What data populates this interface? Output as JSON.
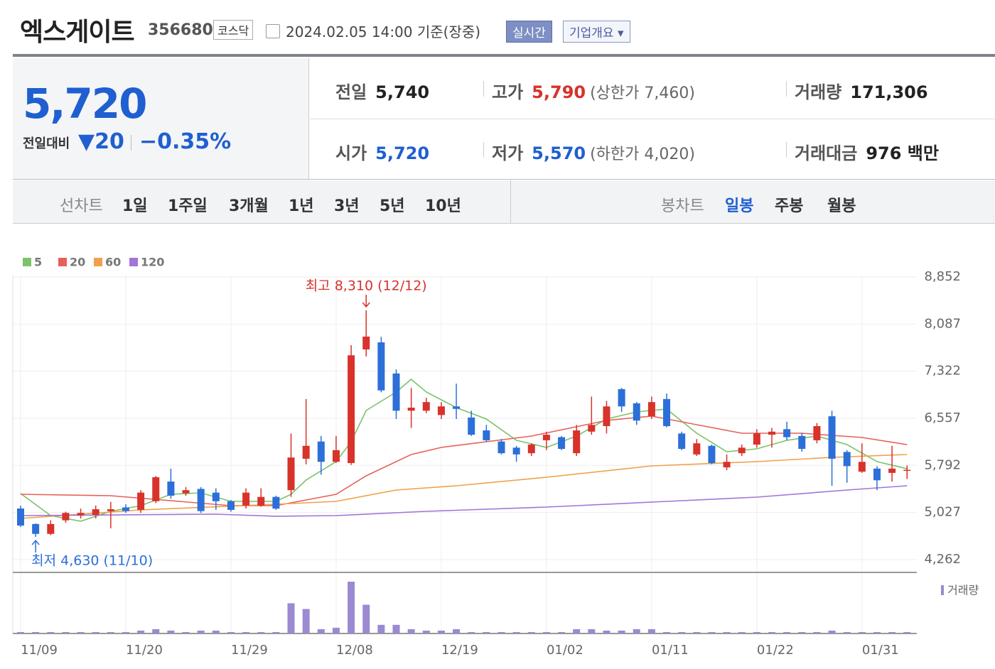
{
  "header": {
    "name": "엑스게이트",
    "code": "356680",
    "market": "코스닥",
    "timestamp": "2024.02.05 14:00 기준(장중)",
    "realtime": "실시간",
    "company_info": "기업개요"
  },
  "summary": {
    "price": "5,720",
    "change_label": "전일대비",
    "change": "20",
    "change_rate": "−0.35%",
    "rows": [
      [
        {
          "label": "전일",
          "value": "5,740"
        },
        {
          "label": "고가",
          "value": "5,790",
          "note": "(상한가 7,460)"
        },
        {
          "label": "거래량",
          "value": "171,306"
        }
      ],
      [
        {
          "label": "시가",
          "value": "5,720"
        },
        {
          "label": "저가",
          "value": "5,570",
          "note": "(하한가 4,020)"
        },
        {
          "label": "거래대금",
          "value": "976 백만"
        }
      ]
    ]
  },
  "tabs": {
    "line_chart": "선차트",
    "line_periods": [
      "1일",
      "1주일",
      "3개월",
      "1년",
      "3년",
      "5년",
      "10년"
    ],
    "candle_chart": "봉차트",
    "candle_periods": [
      "일봉",
      "주봉",
      "월봉"
    ]
  },
  "chart_data": {
    "type": "candlestick",
    "categories": [
      "11/09",
      null,
      null,
      null,
      null,
      null,
      null,
      "11/20",
      null,
      null,
      null,
      null,
      null,
      null,
      "11/29",
      null,
      null,
      null,
      null,
      null,
      null,
      "12/08",
      null,
      null,
      null,
      null,
      null,
      null,
      "12/19",
      null,
      null,
      null,
      null,
      null,
      null,
      "01/02",
      null,
      null,
      null,
      null,
      null,
      null,
      "01/11",
      null,
      null,
      null,
      null,
      null,
      null,
      "01/22",
      null,
      null,
      null,
      null,
      null,
      null,
      "01/31",
      null,
      null,
      null
    ],
    "open": [
      5092,
      4840,
      4680,
      4900,
      4980,
      4990,
      5050,
      5110,
      5070,
      5210,
      5530,
      5340,
      5410,
      5350,
      5210,
      5140,
      5140,
      5280,
      5390,
      5900,
      6180,
      5850,
      5830,
      7675,
      7790,
      7285,
      6680,
      6680,
      6610,
      6750,
      6570,
      6360,
      6180,
      6080,
      5990,
      6200,
      6250,
      5990,
      6340,
      6430,
      7030,
      6800,
      6590,
      6870,
      6310,
      5970,
      6110,
      5760,
      5990,
      6130,
      6290,
      6380,
      6270,
      6200,
      6590,
      6010,
      5690,
      5740,
      5670,
      5720
    ],
    "high": [
      5138,
      4850,
      4900,
      5040,
      5090,
      5140,
      5200,
      5160,
      5390,
      5620,
      5740,
      5440,
      5440,
      5420,
      5230,
      5420,
      5420,
      5300,
      6310,
      6870,
      6270,
      6270,
      7745,
      8310,
      7880,
      7350,
      7050,
      6890,
      6820,
      7120,
      6680,
      6450,
      6220,
      6110,
      6150,
      6340,
      6270,
      6450,
      6910,
      6840,
      7050,
      6820,
      6910,
      6960,
      6340,
      6220,
      6130,
      5970,
      6130,
      6380,
      6400,
      6500,
      6320,
      6480,
      6680,
      6040,
      6150,
      5780,
      6110,
      5790
    ],
    "low": [
      4792,
      4630,
      4660,
      4860,
      4930,
      4930,
      4770,
      5020,
      5020,
      5180,
      5250,
      5300,
      5020,
      5070,
      5040,
      5090,
      5120,
      5070,
      5280,
      5810,
      5640,
      5830,
      5800,
      7560,
      6980,
      6545,
      6400,
      6640,
      6545,
      6545,
      6270,
      6180,
      5970,
      5850,
      5945,
      6040,
      6040,
      5945,
      6290,
      6310,
      6660,
      6450,
      6545,
      6410,
      6040,
      5945,
      5810,
      5715,
      5945,
      6080,
      6080,
      6200,
      6015,
      6150,
      5460,
      5510,
      5670,
      5390,
      5530,
      5570
    ],
    "close": [
      4815,
      4680,
      4840,
      5020,
      5020,
      5080,
      5080,
      5050,
      5350,
      5600,
      5300,
      5390,
      5050,
      5210,
      5070,
      5350,
      5280,
      5090,
      5920,
      6110,
      5850,
      6040,
      7580,
      7884,
      7010,
      6680,
      6730,
      6820,
      6750,
      6710,
      6290,
      6200,
      5990,
      5970,
      6130,
      6290,
      6060,
      6360,
      6450,
      6750,
      6750,
      6520,
      6820,
      6430,
      6060,
      6150,
      5830,
      5850,
      6080,
      6310,
      6340,
      6250,
      6060,
      6430,
      5900,
      5780,
      5850,
      5550,
      5740,
      5720
    ],
    "up_color": "#d8322b",
    "down_color": "#2c6fd8",
    "series": [
      {
        "name": "5",
        "color": "#7ac36a",
        "x": [
          0,
          2,
          4,
          6,
          8,
          10,
          12,
          14,
          17,
          18,
          19,
          21,
          22,
          23,
          25,
          26,
          27,
          29,
          31,
          33,
          35,
          37,
          39,
          41,
          43,
          45,
          47,
          49,
          51,
          53,
          55,
          57,
          59
        ],
        "values": [
          5335,
          4977,
          4885,
          5046,
          5138,
          5323,
          5346,
          5207,
          5207,
          5323,
          5554,
          5853,
          6176,
          6684,
          6983,
          7190,
          6983,
          6730,
          6545,
          6199,
          6084,
          6268,
          6545,
          6661,
          6707,
          6315,
          6015,
          6061,
          6199,
          6268,
          6130,
          5853,
          5738
        ]
      },
      {
        "name": "20",
        "color": "#e8605a",
        "x": [
          0,
          6,
          14,
          17,
          21,
          23,
          26,
          28,
          34,
          39,
          42,
          45,
          48,
          52,
          56,
          59
        ],
        "values": [
          5323,
          5300,
          5138,
          5138,
          5323,
          5623,
          5969,
          6084,
          6268,
          6522,
          6592,
          6453,
          6315,
          6315,
          6245,
          6130
        ]
      },
      {
        "name": "60",
        "color": "#f0a04a",
        "x": [
          0,
          8,
          17,
          21,
          25,
          29,
          35,
          42,
          49,
          54,
          59
        ],
        "values": [
          4931,
          5069,
          5161,
          5207,
          5392,
          5461,
          5600,
          5784,
          5853,
          5923,
          5969
        ]
      },
      {
        "name": "120",
        "color": "#a275d6",
        "x": [
          0,
          13,
          17,
          21,
          27,
          35,
          43,
          49,
          55,
          59
        ],
        "values": [
          4977,
          5000,
          4966,
          4977,
          5046,
          5115,
          5207,
          5277,
          5392,
          5461
        ]
      }
    ],
    "ylim": [
      4054,
      8875
    ],
    "yticks": [
      {
        "value": 4262,
        "label": "4,262"
      },
      {
        "value": 5027,
        "label": "5,027"
      },
      {
        "value": 5792,
        "label": "5,792"
      },
      {
        "value": 6557,
        "label": "6,557"
      },
      {
        "value": 7322,
        "label": "7,322"
      },
      {
        "value": 8087,
        "label": "8,087"
      },
      {
        "value": 8852,
        "label": "8,852"
      }
    ],
    "grid": true,
    "max_annotation": "최고 8,310 (12/12)",
    "min_annotation": "최저 4,630 (11/10)",
    "volume": {
      "name": "거래량",
      "color": "#9b89d2",
      "ylim": [
        0,
        75
      ],
      "values": [
        2,
        2,
        2,
        2,
        2,
        2,
        2,
        2,
        4,
        6,
        4,
        2,
        4,
        4,
        2,
        2,
        2,
        2,
        42,
        34,
        6,
        8,
        72,
        40,
        12,
        12,
        6,
        4,
        4,
        6,
        2,
        2,
        2,
        2,
        2,
        2,
        2,
        6,
        6,
        4,
        4,
        6,
        6,
        2,
        2,
        2,
        2,
        2,
        2,
        2,
        2,
        2,
        2,
        2,
        4,
        2,
        2,
        2,
        2,
        2
      ]
    }
  }
}
